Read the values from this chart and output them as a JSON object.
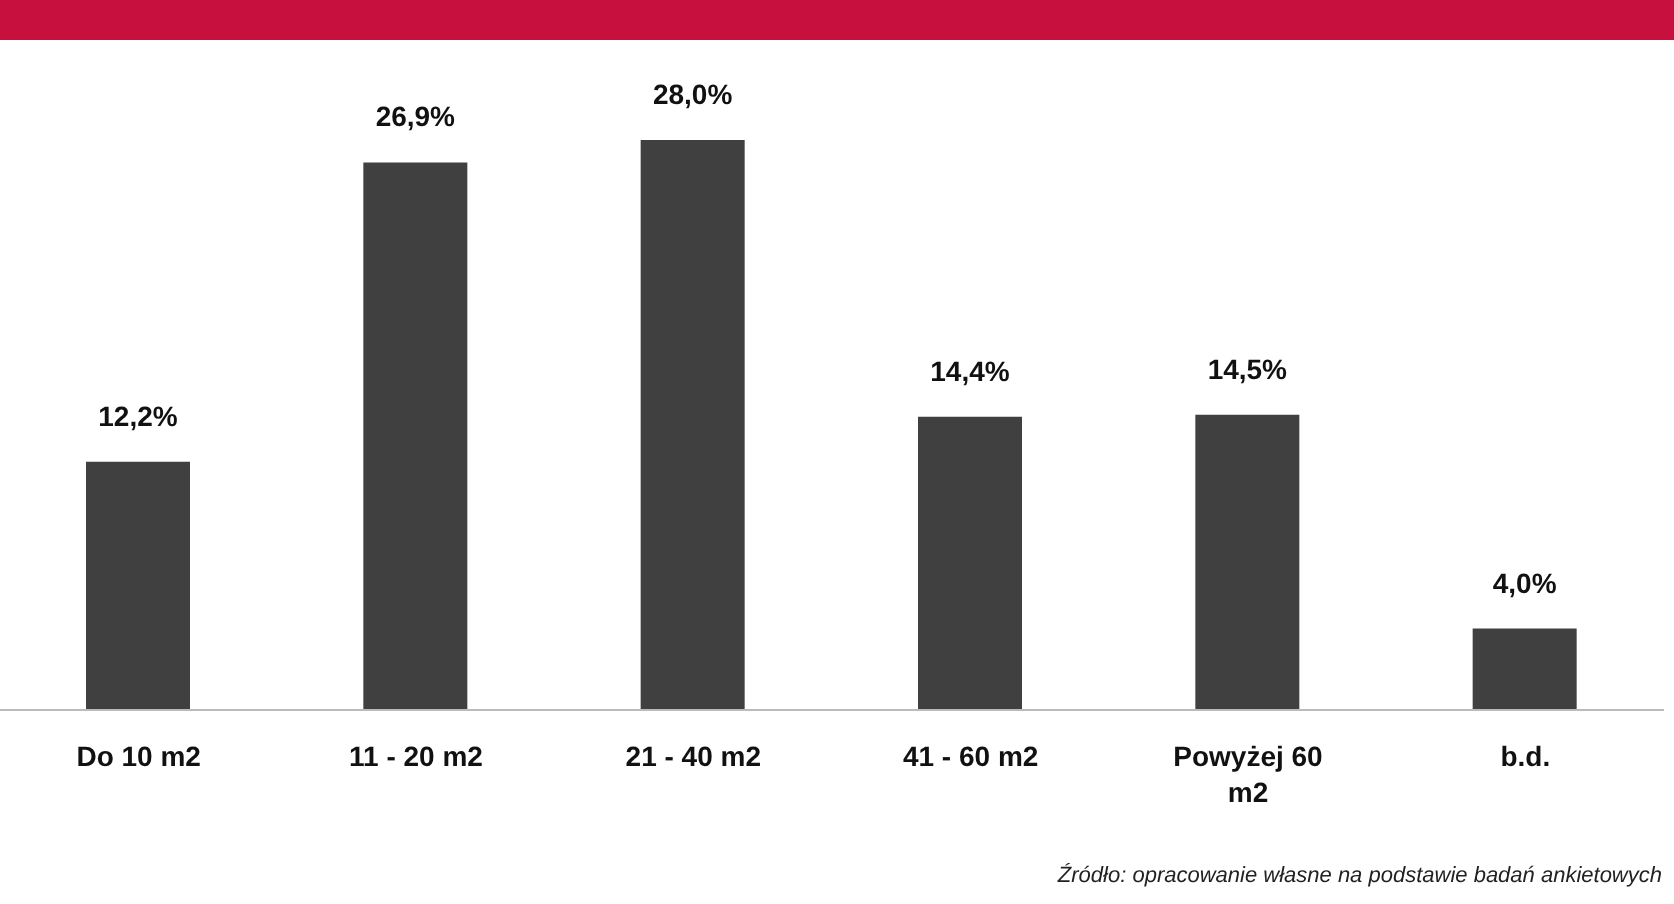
{
  "chart_data": {
    "type": "bar",
    "categories": [
      "Do 10 m2",
      "11 - 20 m2",
      "21 - 40 m2",
      "41 - 60 m2",
      "Powyżej 60 m2",
      "b.d."
    ],
    "values": [
      12.2,
      26.9,
      28.0,
      14.4,
      14.5,
      4.0
    ],
    "value_labels": [
      "12,2%",
      "26,9%",
      "28,0%",
      "14,4%",
      "14,5%",
      "4,0%"
    ],
    "color": "#404040",
    "annotations": [
      "Źródło: opracowanie własne na podstawie badań ankietowych"
    ]
  }
}
